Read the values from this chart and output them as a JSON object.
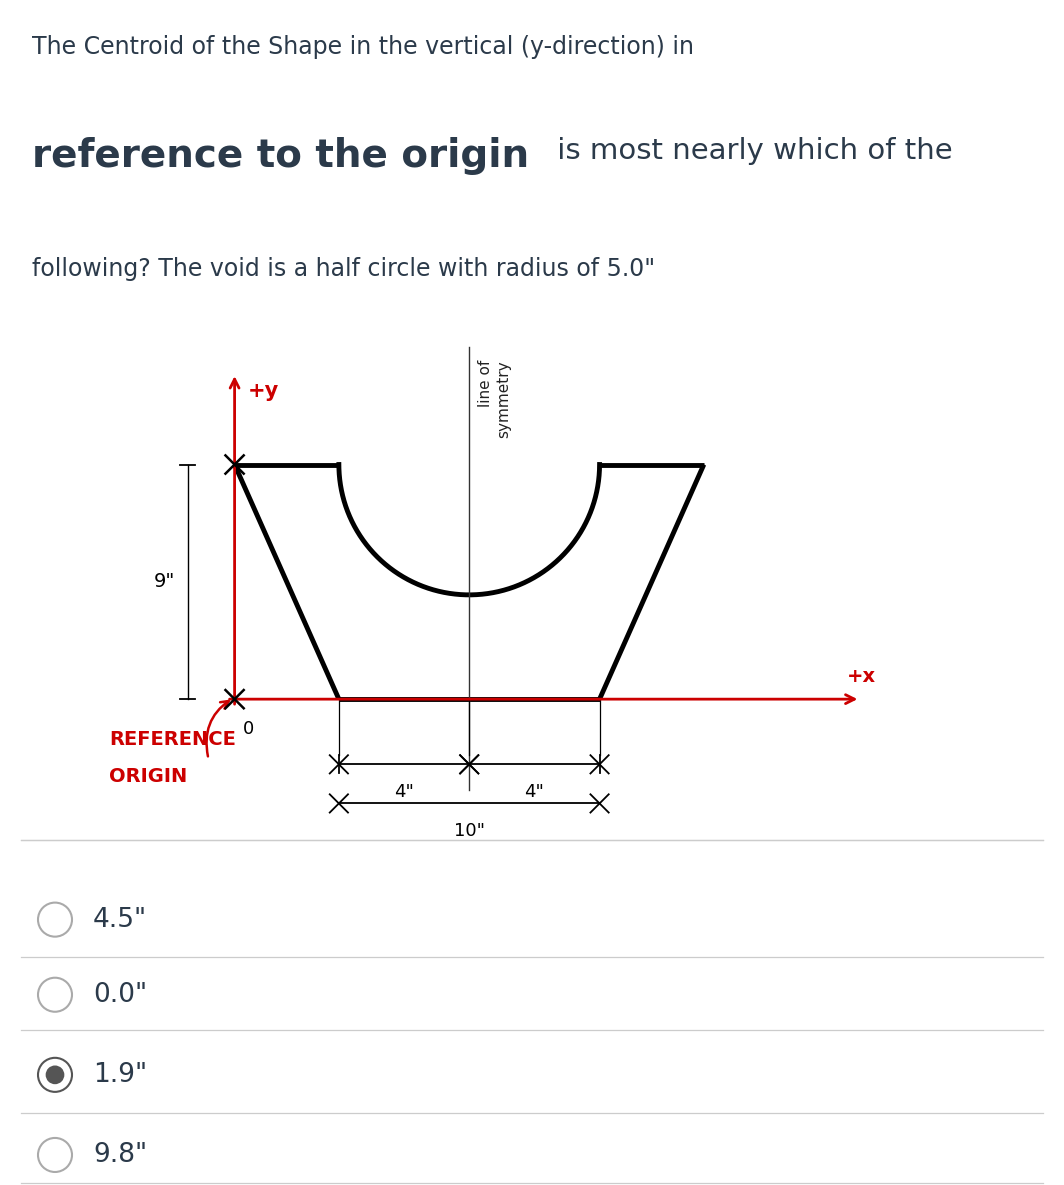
{
  "title_line1": "The Centroid of the Shape in the vertical (y-direction) in",
  "title_line2_bold": "reference to the origin",
  "title_line2_rest": " is most nearly which of the",
  "title_line3": "following? The void is a half circle with radius of 5.0\"",
  "bg_color": "#ffffff",
  "shape_color": "#000000",
  "axis_color": "#cc0000",
  "options": [
    "4.5\"",
    "0.0\"",
    "1.9\"",
    "9.8\""
  ],
  "selected_option": 2,
  "label_x": "+x",
  "label_y": "+y",
  "label_0": "0",
  "label_ref": "REFERENCE",
  "label_origin": "ORIGIN",
  "dim_9": "9\"",
  "dim_4a": "4\"",
  "dim_10": "10\"",
  "dim_4b": "4\"",
  "shape_lw": 3.5,
  "axis_lw": 2.0
}
